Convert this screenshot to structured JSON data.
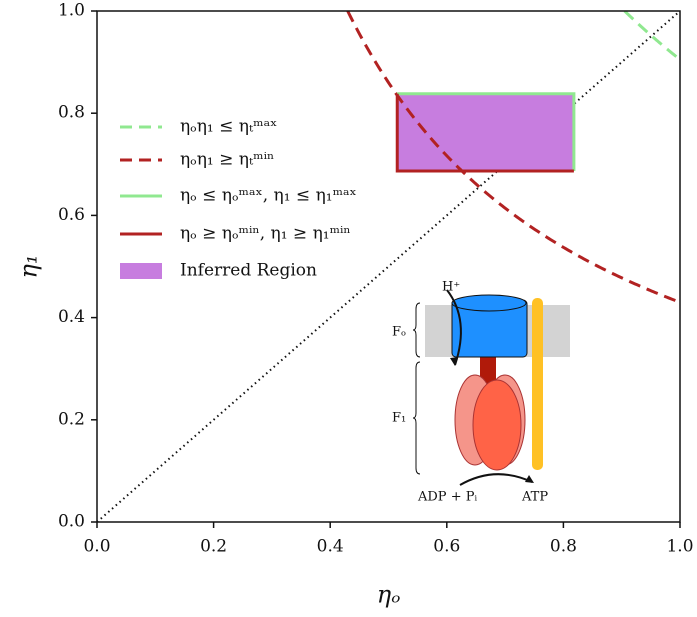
{
  "chart_data": {
    "type": "region",
    "x_label": "ηₒ",
    "y_label": "η₁",
    "xlim": [
      0,
      1
    ],
    "ylim": [
      0,
      1
    ],
    "xticks": [
      {
        "value": 0,
        "label": "0.0"
      },
      0.2,
      0.4,
      0.6,
      0.8,
      {
        "value": 1,
        "label": "1.0"
      }
    ],
    "yticks": [
      {
        "value": 0,
        "label": "0.0"
      },
      0.2,
      0.4,
      0.6,
      0.8,
      {
        "value": 1,
        "label": "1.0"
      }
    ],
    "series": [
      {
        "name": "ηₒη₁ ≤ ηₜᵐᵃˣ",
        "color": "#90e890",
        "kind": "product",
        "dash": true,
        "value": 0.905
      },
      {
        "name": "ηₒη₁ ≥ ηₜᵐⁱⁿ",
        "color": "#b22222",
        "kind": "product",
        "dash": true,
        "value": 0.43
      },
      {
        "name": "ηₒ ≤ ηₒᵐᵃˣ, η₁ ≤ η₁ᵐᵃˣ",
        "color": "#90e890",
        "kind": "upper",
        "dash": false,
        "x": 0.818,
        "y": 0.838
      },
      {
        "name": "ηₒ ≥ ηₒᵐⁱⁿ, η₁ ≥ η₁ᵐⁱⁿ",
        "color": "#b22222",
        "kind": "lower",
        "dash": false,
        "x": 0.515,
        "y": 0.687
      },
      {
        "name": "Inferred Region",
        "color": "#c77ddf",
        "kind": "fill"
      }
    ],
    "annotations": {
      "proton": "H⁺",
      "fo": "Fₒ",
      "f1": "F₁",
      "adp": "ADP + Pᵢ",
      "atp": "ATP"
    }
  }
}
